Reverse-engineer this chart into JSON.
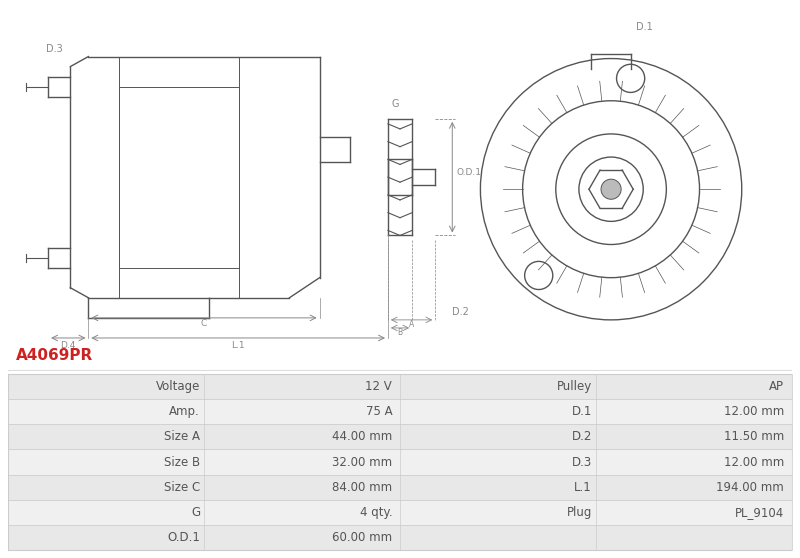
{
  "title": "A4069PR",
  "title_color": "#cc2222",
  "background_color": "#ffffff",
  "table_header_row": [
    "Voltage",
    "12 V",
    "Pulley",
    "AP"
  ],
  "table_rows": [
    [
      "Amp.",
      "75 A",
      "D.1",
      "12.00 mm"
    ],
    [
      "Size A",
      "44.00 mm",
      "D.2",
      "11.50 mm"
    ],
    [
      "Size B",
      "32.00 mm",
      "D.3",
      "12.00 mm"
    ],
    [
      "Size C",
      "84.00 mm",
      "L.1",
      "194.00 mm"
    ],
    [
      "G",
      "4 qty.",
      "Plug",
      "PL_9104"
    ],
    [
      "O.D.1",
      "60.00 mm",
      "",
      ""
    ]
  ],
  "odd_row_color": "#f0f0f0",
  "even_row_color": "#e8e8e8",
  "header_row_color": "#e8e8e8",
  "border_color": "#cccccc",
  "text_color": "#555555",
  "font_size": 8.5,
  "line_color": "#555555",
  "dim_color": "#888888",
  "label_color": "#666666"
}
